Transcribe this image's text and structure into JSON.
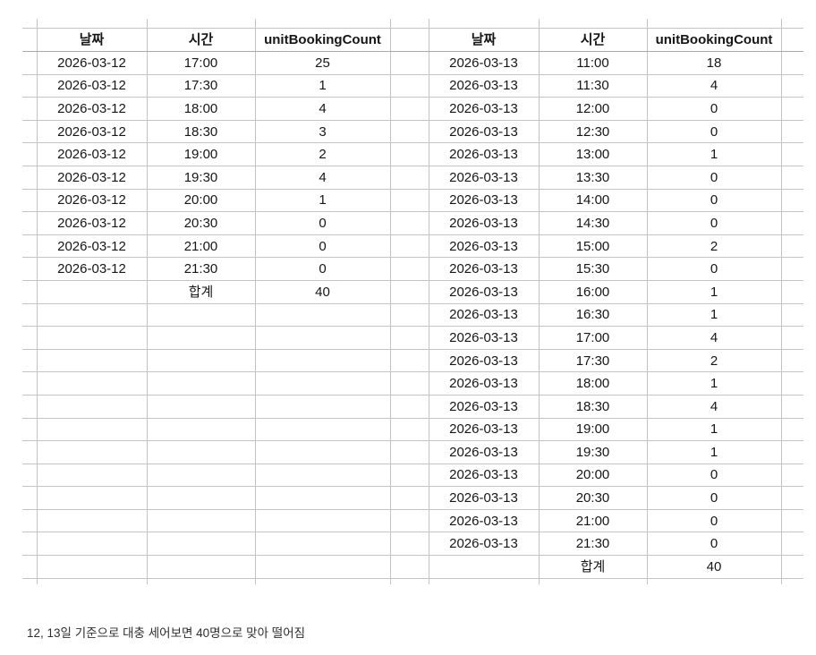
{
  "caption": "12, 13일 기준으로 대충 세어보면 40명으로 맞아 떨어짐",
  "colors": {
    "background": "#ffffff",
    "gridline": "#c4c4c4",
    "header_underline": "#a9a9a9",
    "cell_text": "#161616",
    "caption_text": "#2e2e2e"
  },
  "tables": [
    {
      "name": "march-12",
      "headers": [
        "날짜",
        "시간",
        "unitBookingCount"
      ],
      "rows": [
        [
          "2026-03-12",
          "17:00",
          "25"
        ],
        [
          "2026-03-12",
          "17:30",
          "1"
        ],
        [
          "2026-03-12",
          "18:00",
          "4"
        ],
        [
          "2026-03-12",
          "18:30",
          "3"
        ],
        [
          "2026-03-12",
          "19:00",
          "2"
        ],
        [
          "2026-03-12",
          "19:30",
          "4"
        ],
        [
          "2026-03-12",
          "20:00",
          "1"
        ],
        [
          "2026-03-12",
          "20:30",
          "0"
        ],
        [
          "2026-03-12",
          "21:00",
          "0"
        ],
        [
          "2026-03-12",
          "21:30",
          "0"
        ]
      ],
      "total_label": "합계",
      "total_value": "40",
      "empty_rows_after": 12
    },
    {
      "name": "march-13",
      "headers": [
        "날짜",
        "시간",
        "unitBookingCount"
      ],
      "rows": [
        [
          "2026-03-13",
          "11:00",
          "18"
        ],
        [
          "2026-03-13",
          "11:30",
          "4"
        ],
        [
          "2026-03-13",
          "12:00",
          "0"
        ],
        [
          "2026-03-13",
          "12:30",
          "0"
        ],
        [
          "2026-03-13",
          "13:00",
          "1"
        ],
        [
          "2026-03-13",
          "13:30",
          "0"
        ],
        [
          "2026-03-13",
          "14:00",
          "0"
        ],
        [
          "2026-03-13",
          "14:30",
          "0"
        ],
        [
          "2026-03-13",
          "15:00",
          "2"
        ],
        [
          "2026-03-13",
          "15:30",
          "0"
        ],
        [
          "2026-03-13",
          "16:00",
          "1"
        ],
        [
          "2026-03-13",
          "16:30",
          "1"
        ],
        [
          "2026-03-13",
          "17:00",
          "4"
        ],
        [
          "2026-03-13",
          "17:30",
          "2"
        ],
        [
          "2026-03-13",
          "18:00",
          "1"
        ],
        [
          "2026-03-13",
          "18:30",
          "4"
        ],
        [
          "2026-03-13",
          "19:00",
          "1"
        ],
        [
          "2026-03-13",
          "19:30",
          "1"
        ],
        [
          "2026-03-13",
          "20:00",
          "0"
        ],
        [
          "2026-03-13",
          "20:30",
          "0"
        ],
        [
          "2026-03-13",
          "21:00",
          "0"
        ],
        [
          "2026-03-13",
          "21:30",
          "0"
        ]
      ],
      "total_label": "합계",
      "total_value": "40",
      "empty_rows_after": 0
    }
  ]
}
